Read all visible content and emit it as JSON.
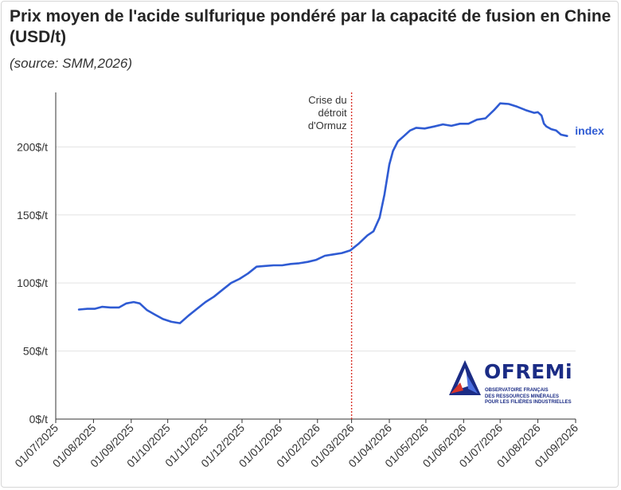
{
  "title": "Prix moyen de l'acide sulfurique pondéré par la capacité de fusion en Chine (USD/t)",
  "subtitle": "(source: SMM,2026)",
  "logo": {
    "name": "OFREMi",
    "tagline": "OBSERVATOIRE FRANÇAIS\nDES RESSOURCES MINÉRALES\nPOUR LES FILIÈRES INDUSTRIELLES"
  },
  "chart_data": {
    "type": "line",
    "title": "Prix moyen de l'acide sulfurique pondéré par la capacité de fusion en Chine (USD/t)",
    "subtitle": "(source: SMM,2026)",
    "xlabel": "",
    "ylabel": "",
    "ylim": [
      0,
      240
    ],
    "y_ticks": [
      0,
      50,
      100,
      150,
      200
    ],
    "y_tick_labels": [
      "0$/t",
      "50$/t",
      "100$/t",
      "150$/t",
      "200$/t"
    ],
    "x_range": [
      "2025-07-01",
      "2026-09-01"
    ],
    "x_ticks": [
      "2025-07-01",
      "2025-08-01",
      "2025-09-01",
      "2025-10-01",
      "2025-11-01",
      "2025-12-01",
      "2026-01-01",
      "2026-02-01",
      "2026-03-01",
      "2026-04-01",
      "2026-05-01",
      "2026-06-01",
      "2026-07-01",
      "2026-08-01",
      "2026-09-01"
    ],
    "x_tick_labels": [
      "01/07/2025",
      "01/08/2025",
      "01/09/2025",
      "01/10/2025",
      "01/11/2025",
      "01/12/2025",
      "01/01/2026",
      "01/02/2026",
      "01/03/2026",
      "01/04/2026",
      "01/05/2026",
      "01/06/2026",
      "01/07/2026",
      "01/08/2026",
      "01/09/2026"
    ],
    "grid": "horizontal",
    "series": [
      {
        "name": "index",
        "color": "#2f5bd3",
        "points": [
          [
            "2025-07-20",
            80.5
          ],
          [
            "2025-07-27",
            81
          ],
          [
            "2025-08-02",
            81
          ],
          [
            "2025-08-08",
            82.5
          ],
          [
            "2025-08-15",
            82
          ],
          [
            "2025-08-22",
            82
          ],
          [
            "2025-08-28",
            85
          ],
          [
            "2025-09-03",
            86
          ],
          [
            "2025-09-08",
            85
          ],
          [
            "2025-09-14",
            80
          ],
          [
            "2025-09-20",
            77
          ],
          [
            "2025-09-27",
            73.5
          ],
          [
            "2025-10-04",
            71.5
          ],
          [
            "2025-10-11",
            70.5
          ],
          [
            "2025-10-18",
            76
          ],
          [
            "2025-10-25",
            81
          ],
          [
            "2025-11-01",
            86
          ],
          [
            "2025-11-08",
            90
          ],
          [
            "2025-11-15",
            95
          ],
          [
            "2025-11-22",
            100
          ],
          [
            "2025-11-29",
            103
          ],
          [
            "2025-12-06",
            107
          ],
          [
            "2025-12-13",
            112
          ],
          [
            "2025-12-20",
            112.5
          ],
          [
            "2025-12-27",
            113
          ],
          [
            "2026-01-03",
            113
          ],
          [
            "2026-01-10",
            114
          ],
          [
            "2026-01-17",
            114.5
          ],
          [
            "2026-01-24",
            115.5
          ],
          [
            "2026-01-31",
            117
          ],
          [
            "2026-02-07",
            120
          ],
          [
            "2026-02-14",
            121
          ],
          [
            "2026-02-21",
            122
          ],
          [
            "2026-02-28",
            124
          ],
          [
            "2026-03-07",
            129
          ],
          [
            "2026-03-14",
            135
          ],
          [
            "2026-03-19",
            138
          ],
          [
            "2026-03-24",
            148
          ],
          [
            "2026-03-28",
            165
          ],
          [
            "2026-04-01",
            187
          ],
          [
            "2026-04-04",
            197
          ],
          [
            "2026-04-08",
            204
          ],
          [
            "2026-04-13",
            208
          ],
          [
            "2026-04-18",
            212
          ],
          [
            "2026-04-23",
            214
          ],
          [
            "2026-04-30",
            213.5
          ],
          [
            "2026-05-08",
            215
          ],
          [
            "2026-05-15",
            216.5
          ],
          [
            "2026-05-22",
            215.5
          ],
          [
            "2026-05-29",
            217
          ],
          [
            "2026-06-05",
            217
          ],
          [
            "2026-06-12",
            220
          ],
          [
            "2026-06-19",
            221
          ],
          [
            "2026-06-26",
            227
          ],
          [
            "2026-07-01",
            232
          ],
          [
            "2026-07-08",
            231.5
          ],
          [
            "2026-07-15",
            229.5
          ],
          [
            "2026-07-22",
            227
          ],
          [
            "2026-07-29",
            225
          ],
          [
            "2026-08-01",
            225.5
          ],
          [
            "2026-08-04",
            223
          ],
          [
            "2026-08-06",
            217
          ],
          [
            "2026-08-08",
            215
          ],
          [
            "2026-08-12",
            213
          ],
          [
            "2026-08-16",
            212
          ],
          [
            "2026-08-20",
            209
          ],
          [
            "2026-08-25",
            208
          ]
        ]
      }
    ],
    "annotations": [
      {
        "type": "vline",
        "x": "2026-03-01",
        "color": "#d9342b",
        "style": "dotted",
        "label": "Crise du\ndétroit\nd'Ormuz"
      }
    ]
  }
}
